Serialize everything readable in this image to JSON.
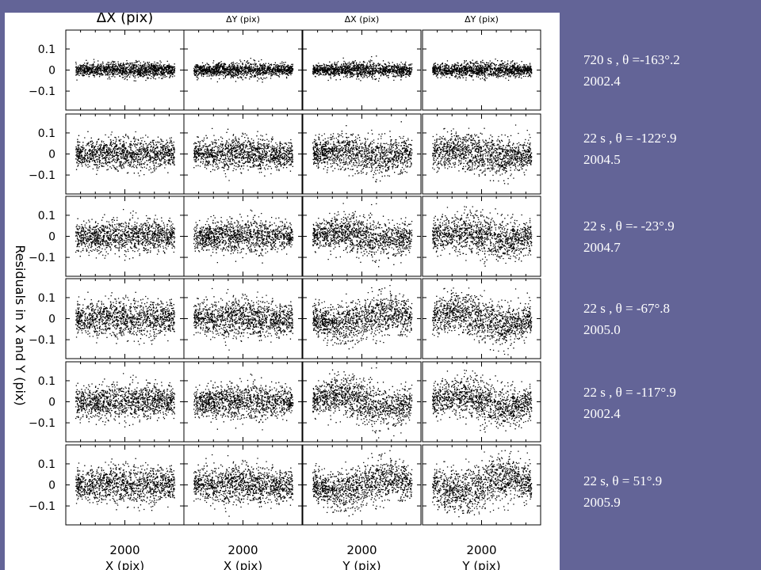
{
  "chart_data": {
    "type": "scatter",
    "ylabel": "Residuals in X and Y (pix)",
    "columns": [
      {
        "title": "ΔX (pix)",
        "xlabel": "X (pix)",
        "xtick": "2000"
      },
      {
        "title": "ΔY (pix)",
        "xlabel": "X (pix)",
        "xtick": "2000"
      },
      {
        "title": "ΔX (pix)",
        "xlabel": "Y (pix)",
        "xtick": "2000"
      },
      {
        "title": "ΔY (pix)",
        "xlabel": "Y (pix)",
        "xtick": "2000"
      }
    ],
    "yticks": [
      {
        "value": 0.1,
        "label": "0.1"
      },
      {
        "value": 0,
        "label": "0"
      },
      {
        "value": -0.1,
        "label": "−0.1"
      }
    ],
    "ylim": [
      -0.19,
      0.19
    ],
    "xlim": [
      0,
      4096
    ],
    "rows": [
      {
        "label_line1": "720 s , θ =-163°.2",
        "label_line2": "2002.4",
        "spread": [
          0.018,
          0.018,
          0.018,
          0.018
        ],
        "offset": [
          0,
          0,
          0,
          0
        ]
      },
      {
        "label_line1": "22 s , θ = -122°.9",
        "label_line2": "2004.5",
        "spread": [
          0.038,
          0.038,
          0.045,
          0.045
        ],
        "offset": [
          0,
          0,
          0.012,
          0.015
        ]
      },
      {
        "label_line1": "22 s , θ =- -23°.9",
        "label_line2": "2004.7",
        "spread": [
          0.04,
          0.04,
          0.045,
          0.05
        ],
        "offset": [
          0,
          0,
          0.015,
          0.02
        ]
      },
      {
        "label_line1": "22 s , θ = -67°.8",
        "label_line2": "2005.0",
        "spread": [
          0.045,
          0.045,
          0.05,
          0.05
        ],
        "offset": [
          0,
          0,
          -0.025,
          0.03
        ]
      },
      {
        "label_line1": "22 s , θ = -117°.9",
        "label_line2": "2002.4",
        "spread": [
          0.042,
          0.042,
          0.05,
          0.05
        ],
        "offset": [
          0,
          0,
          0.03,
          0.03
        ]
      },
      {
        "label_line1": "22 s, θ = 51°.9",
        "label_line2": "2005.9",
        "spread": [
          0.045,
          0.045,
          0.05,
          0.055
        ],
        "offset": [
          0,
          0,
          -0.03,
          -0.035
        ]
      }
    ]
  },
  "colors": {
    "background": "#636497",
    "figure": "#ffffff",
    "points": "#000000",
    "label_text": "#ffffff"
  }
}
